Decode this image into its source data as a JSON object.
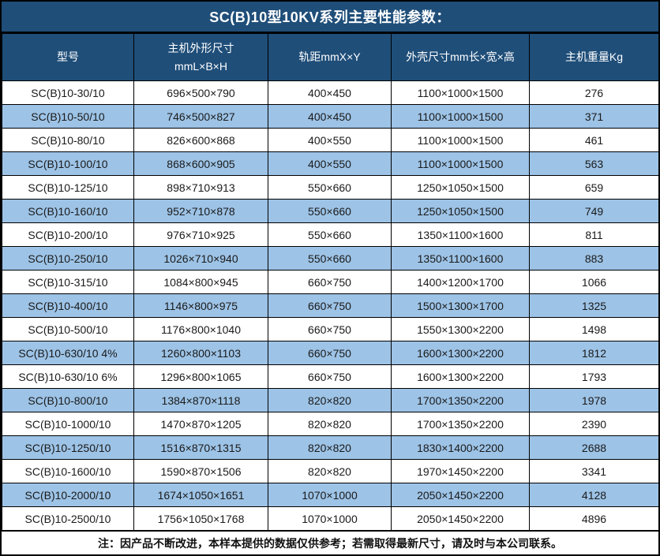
{
  "title": "SC(B)10型10KV系列主要性能参数：",
  "table": {
    "headers": [
      "型号",
      "主机外形尺寸\nmmL×B×H",
      "轨距mmX×Y",
      "外壳尺寸mm长×宽×高",
      "主机重量Kg"
    ],
    "rows": [
      [
        "SC(B)10-30/10",
        "696×500×790",
        "400×450",
        "1100×1000×1500",
        "276"
      ],
      [
        "SC(B)10-50/10",
        "746×500×827",
        "400×450",
        "1100×1000×1500",
        "371"
      ],
      [
        "SC(B)10-80/10",
        "826×600×868",
        "400×550",
        "1100×1000×1500",
        "461"
      ],
      [
        "SC(B)10-100/10",
        "868×600×905",
        "400×550",
        "1100×1000×1500",
        "563"
      ],
      [
        "SC(B)10-125/10",
        "898×710×913",
        "550×660",
        "1250×1050×1500",
        "659"
      ],
      [
        "SC(B)10-160/10",
        "952×710×878",
        "550×660",
        "1250×1050×1500",
        "749"
      ],
      [
        "SC(B)10-200/10",
        "976×710×925",
        "550×660",
        "1350×1100×1600",
        "811"
      ],
      [
        "SC(B)10-250/10",
        "1026×710×940",
        "550×660",
        "1350×1100×1600",
        "883"
      ],
      [
        "SC(B)10-315/10",
        "1084×800×945",
        "660×750",
        "1400×1200×1700",
        "1066"
      ],
      [
        "SC(B)10-400/10",
        "1146×800×975",
        "660×750",
        "1500×1300×1700",
        "1325"
      ],
      [
        "SC(B)10-500/10",
        "1176×800×1040",
        "660×750",
        "1550×1300×2200",
        "1498"
      ],
      [
        "SC(B)10-630/10 4%",
        "1260×800×1103",
        "660×750",
        "1600×1300×2200",
        "1812"
      ],
      [
        "SC(B)10-630/10 6%",
        "1296×800×1065",
        "660×750",
        "1600×1300×2200",
        "1793"
      ],
      [
        "SC(B)10-800/10",
        "1384×870×1118",
        "820×820",
        "1700×1350×2200",
        "1978"
      ],
      [
        "SC(B)10-1000/10",
        "1470×870×1205",
        "820×820",
        "1700×1350×2200",
        "2390"
      ],
      [
        "SC(B)10-1250/10",
        "1516×870×1315",
        "820×820",
        "1830×1400×2200",
        "2688"
      ],
      [
        "SC(B)10-1600/10",
        "1590×870×1506",
        "820×820",
        "1970×1450×2200",
        "3341"
      ],
      [
        "SC(B)10-2000/10",
        "1674×1050×1651",
        "1070×1000",
        "2050×1450×2200",
        "4128"
      ],
      [
        "SC(B)10-2500/10",
        "1756×1050×1768",
        "1070×1000",
        "2050×1450×2200",
        "4896"
      ]
    ]
  },
  "footer_note": "注：因产品不断改进，本样本提供的数据仅供参考；若需取得最新尺寸，请及时与本公司联系。",
  "colors": {
    "header_bg": "#1f4e79",
    "row_alt_bg": "#9dc3e6",
    "border": "#000000",
    "header_text": "#ffffff",
    "body_text": "#1a1a1a"
  }
}
